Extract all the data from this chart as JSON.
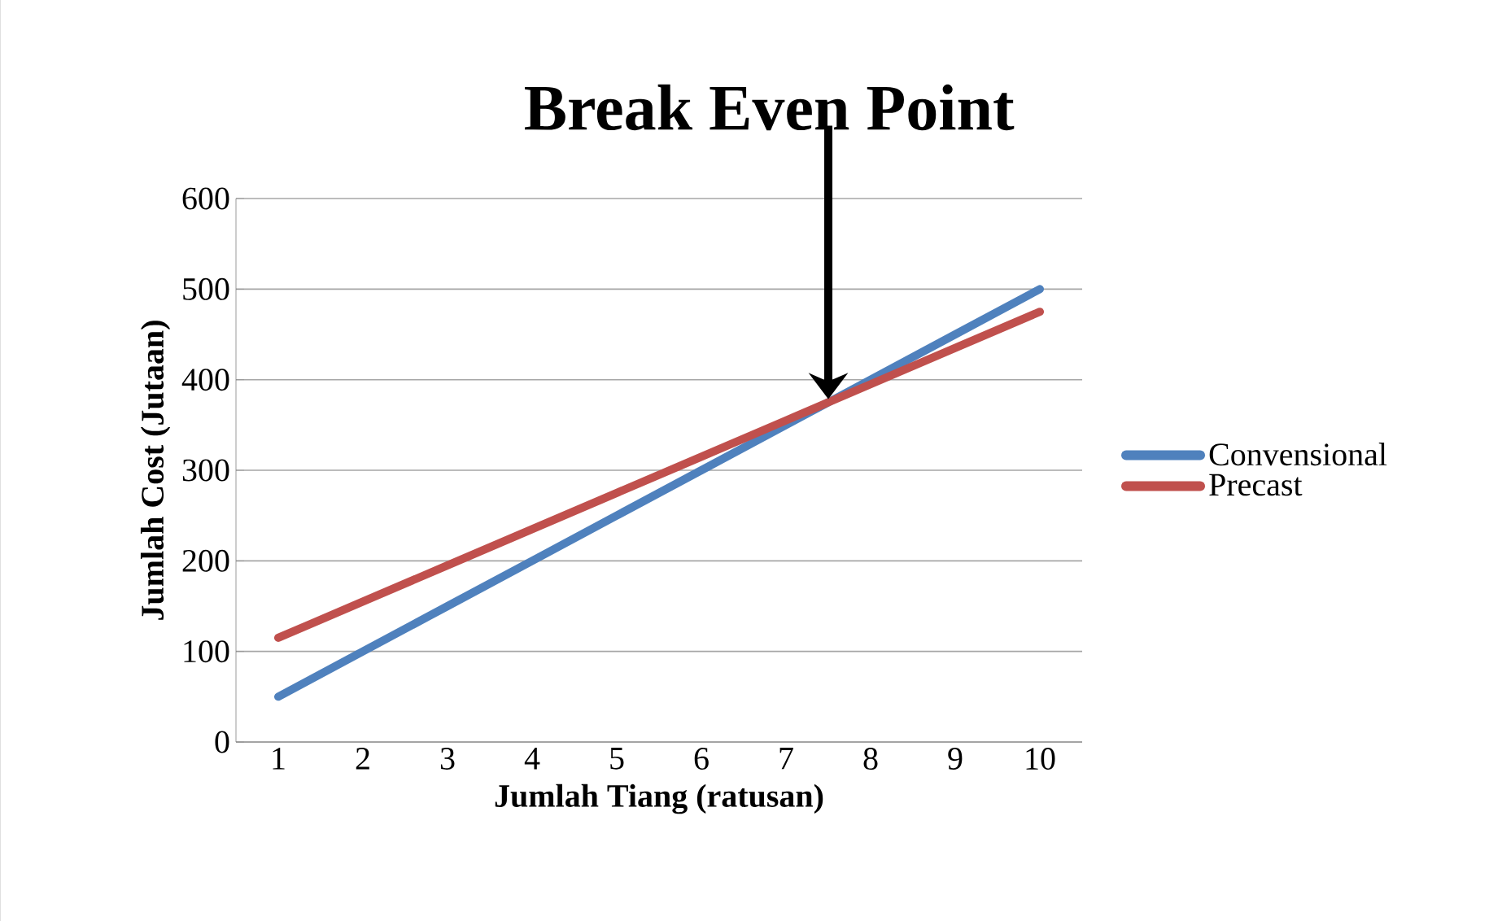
{
  "chart_data": {
    "type": "line",
    "title": "Break Even Point",
    "xlabel": "Jumlah Tiang (ratusan)",
    "ylabel": "Jumlah Cost (Jutaan)",
    "categories": [
      "1",
      "2",
      "3",
      "4",
      "5",
      "6",
      "7",
      "8",
      "9",
      "10"
    ],
    "series": [
      {
        "name": "Convensional",
        "color": "#4f81bd",
        "values": [
          50,
          100,
          150,
          200,
          250,
          300,
          350,
          400,
          450,
          500
        ]
      },
      {
        "name": "Precast",
        "color": "#c0504d",
        "values": [
          115,
          155,
          195,
          235,
          275,
          315,
          355,
          395,
          435,
          475
        ]
      }
    ],
    "ylim": [
      0,
      600
    ],
    "yticks": [
      0,
      100,
      200,
      300,
      400,
      500,
      600
    ],
    "grid": "y",
    "legend": "right",
    "marker": "none",
    "line_style": "solid"
  }
}
